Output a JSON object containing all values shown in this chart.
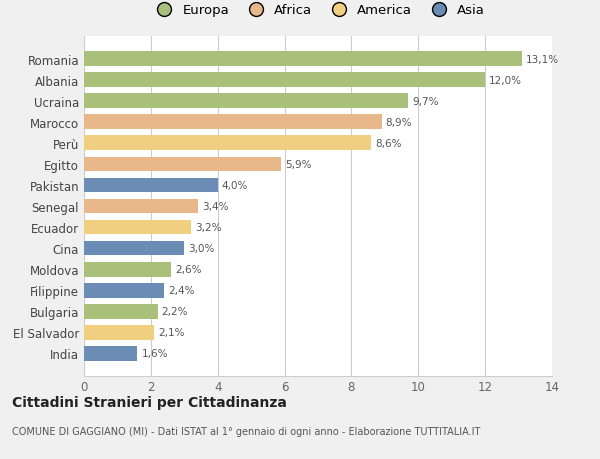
{
  "categories": [
    "Romania",
    "Albania",
    "Ucraina",
    "Marocco",
    "Perù",
    "Egitto",
    "Pakistan",
    "Senegal",
    "Ecuador",
    "Cina",
    "Moldova",
    "Filippine",
    "Bulgaria",
    "El Salvador",
    "India"
  ],
  "values": [
    13.1,
    12.0,
    9.7,
    8.9,
    8.6,
    5.9,
    4.0,
    3.4,
    3.2,
    3.0,
    2.6,
    2.4,
    2.2,
    2.1,
    1.6
  ],
  "labels": [
    "13,1%",
    "12,0%",
    "9,7%",
    "8,9%",
    "8,6%",
    "5,9%",
    "4,0%",
    "3,4%",
    "3,2%",
    "3,0%",
    "2,6%",
    "2,4%",
    "2,2%",
    "2,1%",
    "1,6%"
  ],
  "colors": [
    "#a8c07a",
    "#a8c07a",
    "#a8c07a",
    "#e8b88a",
    "#f0d080",
    "#e8b88a",
    "#6b8db5",
    "#e8b88a",
    "#f0d080",
    "#6b8db5",
    "#a8c07a",
    "#6b8db5",
    "#a8c07a",
    "#f0d080",
    "#6b8db5"
  ],
  "continent_colors": {
    "Europa": "#a8c07a",
    "Africa": "#e8b88a",
    "America": "#f0d080",
    "Asia": "#6b8db5"
  },
  "legend_labels": [
    "Europa",
    "Africa",
    "America",
    "Asia"
  ],
  "xlim": [
    0,
    14
  ],
  "xticks": [
    0,
    2,
    4,
    6,
    8,
    10,
    12,
    14
  ],
  "title": "Cittadini Stranieri per Cittadinanza",
  "subtitle": "COMUNE DI GAGGIANO (MI) - Dati ISTAT al 1° gennaio di ogni anno - Elaborazione TUTTITALIA.IT",
  "background_color": "#f0f0f0",
  "bar_background": "#ffffff",
  "grid_color": "#cccccc"
}
